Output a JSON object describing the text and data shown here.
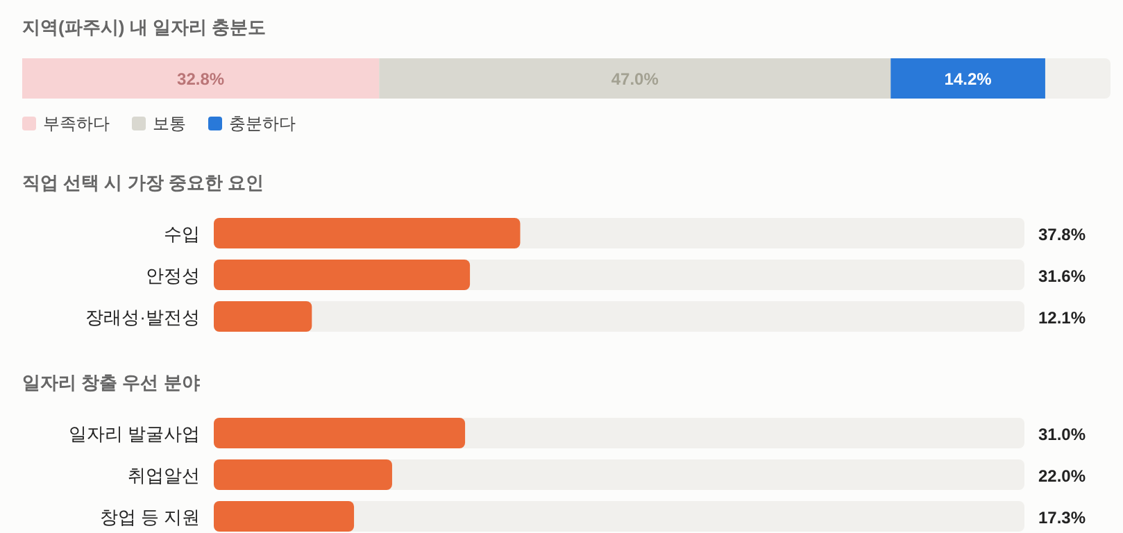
{
  "chart_data": [
    {
      "type": "bar",
      "orientation": "horizontal",
      "stacked": true,
      "title": "지역(파주시) 내 일자리 충분도",
      "categories": [
        null
      ],
      "xlim": [
        0,
        100
      ],
      "tick_labels": false,
      "legend": "bottom left",
      "series": [
        {
          "name": "부족하다",
          "color": "#f8d3d4",
          "values": [
            32.8
          ],
          "value_labels": [
            "32.8%"
          ]
        },
        {
          "name": "보통",
          "color": "#d9d8d0",
          "values": [
            47.0
          ],
          "value_labels": [
            "47.0%"
          ]
        },
        {
          "name": "충분하다",
          "color": "#2979d9",
          "values": [
            14.2
          ],
          "value_labels": [
            "14.2%"
          ]
        }
      ]
    },
    {
      "type": "bar",
      "orientation": "horizontal",
      "title": "직업 선택 시 가장 중요한 요인",
      "categories": [
        "수입",
        "안정성",
        "장래성·발전성"
      ],
      "xlim": [
        0,
        100
      ],
      "tick_labels": "y",
      "color": "#eb6a37",
      "values": [
        37.8,
        31.6,
        12.1
      ],
      "value_labels": [
        "37.8%",
        "31.6%",
        "12.1%"
      ]
    },
    {
      "type": "bar",
      "orientation": "horizontal",
      "title": "일자리 창출 우선 분야",
      "categories": [
        "일자리 발굴사업",
        "취업알선",
        "창업 등 지원"
      ],
      "xlim": [
        0,
        100
      ],
      "tick_labels": "y",
      "color": "#eb6a37",
      "values": [
        31.0,
        22.0,
        17.3
      ],
      "value_labels": [
        "31.0%",
        "22.0%",
        "17.3%"
      ]
    }
  ]
}
